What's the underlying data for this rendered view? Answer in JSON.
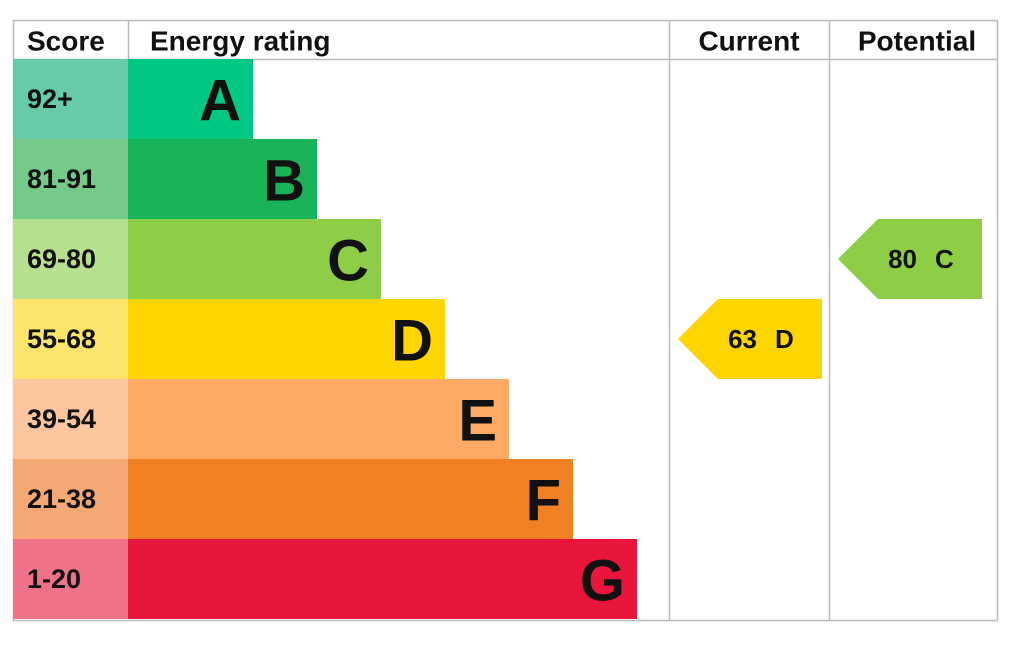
{
  "header": {
    "score": "Score",
    "energy_rating": "Energy rating",
    "current": "Current",
    "potential": "Potential"
  },
  "bands": [
    {
      "score": "92+",
      "rating": "A",
      "color": "#00c781",
      "score_color": "#66cba6"
    },
    {
      "score": "81-91",
      "rating": "B",
      "color": "#19b459",
      "score_color": "#75c98b"
    },
    {
      "score": "69-80",
      "rating": "C",
      "color": "#8dce46",
      "score_color": "#b6e08d"
    },
    {
      "score": "55-68",
      "rating": "D",
      "color": "#ffd500",
      "score_color": "#fde46c"
    },
    {
      "score": "39-54",
      "rating": "E",
      "color": "#fcaa65",
      "score_color": "#fcc79f"
    },
    {
      "score": "21-38",
      "rating": "F",
      "color": "#ef8023",
      "score_color": "#f5a873"
    },
    {
      "score": "1-20",
      "rating": "G",
      "color": "#e9153b",
      "score_color": "#f07289"
    }
  ],
  "current": {
    "score": 63,
    "rating": "D"
  },
  "potential": {
    "score": 80,
    "rating": "C"
  }
}
